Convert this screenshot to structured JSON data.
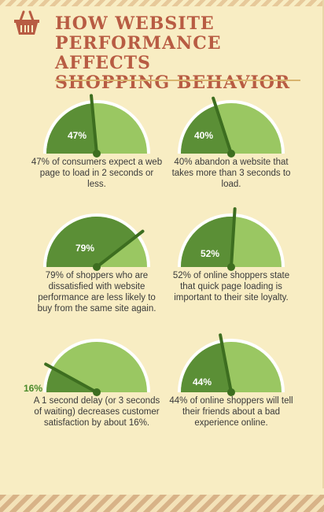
{
  "header": {
    "title_lines": [
      "HOW WEBSITE",
      "PERFORMANCE AFFECTS",
      "SHOPPING BEHAVIOR"
    ],
    "basket_icon": "basket-icon"
  },
  "colors": {
    "background": "#f8edc3",
    "title": "#b85c43",
    "gauge_light": "#9ac762",
    "gauge_dark": "#5b8f36",
    "needle": "#3d6e20",
    "caption": "#3a3a3a"
  },
  "gauges": [
    {
      "percent": 47,
      "label": "47%",
      "caption": "47% of consumers expect a web page to load in 2 seconds or less."
    },
    {
      "percent": 40,
      "label": "40%",
      "caption": "40% abandon a website that takes more than 3 seconds to load."
    },
    {
      "percent": 79,
      "label": "79%",
      "caption": "79% of shoppers who are dissatisfied with website performance are less likely to buy from the same site again."
    },
    {
      "percent": 52,
      "label": "52%",
      "caption": "52% of online shoppers state that quick page loading is important to their site loyalty."
    },
    {
      "percent": 16,
      "label": "16%",
      "caption": "A 1 second delay (or 3 seconds of waiting) decreases customer satisfaction by about 16%."
    },
    {
      "percent": 44,
      "label": "44%",
      "caption": "44% of online shoppers will tell their friends about a bad experience online."
    }
  ]
}
